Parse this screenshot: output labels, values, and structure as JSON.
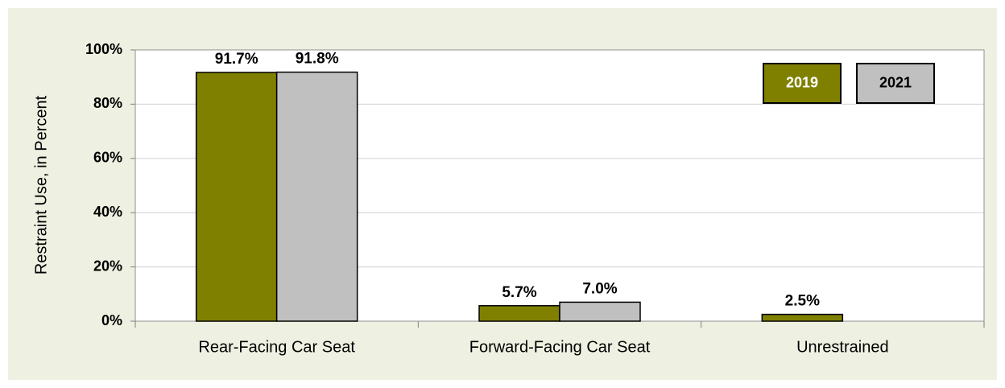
{
  "chart_data": {
    "type": "bar",
    "y_label": "Restraint Use, in Percent",
    "categories": [
      "Rear-Facing Car Seat",
      "Forward-Facing Car Seat",
      "Unrestrained"
    ],
    "series": [
      {
        "name": "2019",
        "color": "#808000",
        "values": [
          91.7,
          5.7,
          2.5
        ],
        "value_labels": [
          "91.7%",
          "5.7%",
          "2.5%"
        ]
      },
      {
        "name": "2021",
        "color": "#c0c0c0",
        "values": [
          91.8,
          7.0,
          null
        ],
        "value_labels": [
          "91.8%",
          "7.0%",
          null
        ]
      }
    ],
    "ylim": [
      0,
      100
    ],
    "yticks": [
      {
        "value": 0,
        "label": "0%"
      },
      {
        "value": 20,
        "label": "20%"
      },
      {
        "value": 40,
        "label": "40%"
      },
      {
        "value": 60,
        "label": "60%"
      },
      {
        "value": 80,
        "label": "80%"
      },
      {
        "value": 100,
        "label": "100%"
      }
    ],
    "grid": true,
    "legend": "upper right"
  }
}
